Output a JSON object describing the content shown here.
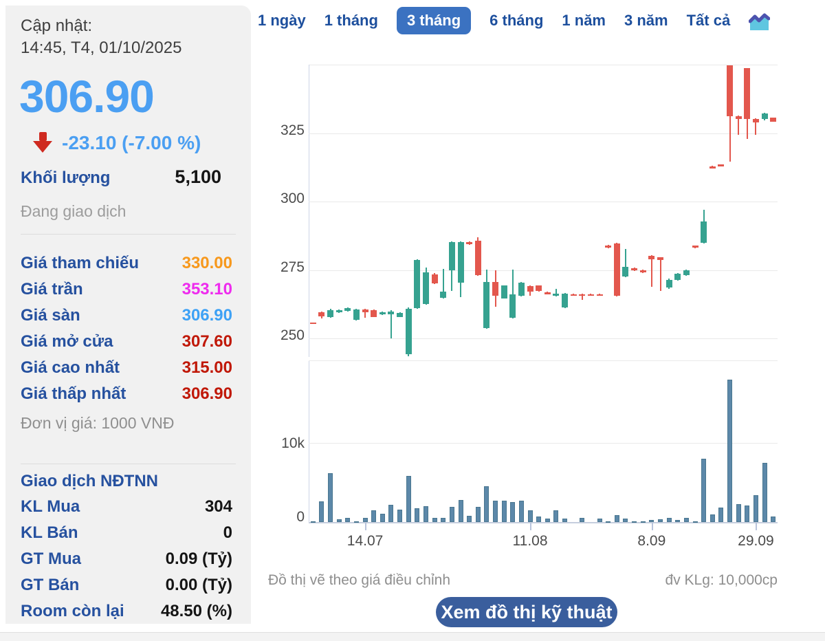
{
  "quote_panel": {
    "updated_label": "Cập nhật:",
    "updated_time": "14:45, T4, 01/10/2025",
    "last_price": "306.90",
    "price_color": "#4b9ff2",
    "change_text": "-23.10 (-7.00 %)",
    "change_arrow_icon": "down-arrow-icon",
    "volume_label": "Khối lượng",
    "volume_value": "5,100",
    "session_status": "Đang giao dịch",
    "price_rows": [
      {
        "label": "Giá tham chiếu",
        "value": "330.00",
        "color": "#f7981c"
      },
      {
        "label": "Giá trần",
        "value": "353.10",
        "color": "#ee2bee"
      },
      {
        "label": "Giá sàn",
        "value": "306.90",
        "color": "#3da1f5"
      },
      {
        "label": "Giá mở cửa",
        "value": "307.60",
        "color": "#c01808"
      },
      {
        "label": "Giá cao nhất",
        "value": "315.00",
        "color": "#c01808"
      },
      {
        "label": "Giá thấp nhất",
        "value": "306.90",
        "color": "#c01808"
      }
    ],
    "price_unit_note": "Đơn vị giá: 1000 VNĐ",
    "foreign_title": "Giao dịch NĐTNN",
    "foreign_rows": [
      {
        "label": "KL Mua",
        "value": "304"
      },
      {
        "label": "KL Bán",
        "value": "0"
      },
      {
        "label": "GT Mua",
        "value": "0.09 (Tỷ)"
      },
      {
        "label": "GT Bán",
        "value": "0.00 (Tỷ)"
      },
      {
        "label": "Room còn lại",
        "value": "48.50 (%)"
      }
    ]
  },
  "tabs": {
    "items": [
      {
        "label": "1 ngày",
        "active": false
      },
      {
        "label": "1 tháng",
        "active": false
      },
      {
        "label": "3 tháng",
        "active": true
      },
      {
        "label": "6 tháng",
        "active": false
      },
      {
        "label": "1 năm",
        "active": false
      },
      {
        "label": "3 năm",
        "active": false
      },
      {
        "label": "Tất cả",
        "active": false
      }
    ],
    "chart_icon": "area-chart-icon",
    "active_bg": "#3b72c1"
  },
  "chart_data": {
    "type": "candlestick+volume",
    "price_axis": {
      "ticks": [
        325,
        300,
        275,
        250
      ],
      "ylim": [
        243,
        350
      ],
      "grid": true
    },
    "volume_axis": {
      "ticks": [
        "10k",
        "0"
      ],
      "gridline_value": 10000
    },
    "x_ticks": [
      {
        "label": "14.07",
        "index": 6
      },
      {
        "label": "11.08",
        "index": 25
      },
      {
        "label": "8.09",
        "index": 39
      },
      {
        "label": "29.09",
        "index": 51
      }
    ],
    "colors": {
      "up": "#36a290",
      "down": "#e3574d",
      "volume": "#5c88a9"
    },
    "candles": [
      [
        255.8,
        255.9,
        255.2,
        255.3,
        50
      ],
      [
        259.5,
        259.8,
        257.3,
        258.0,
        2600
      ],
      [
        257.9,
        260.7,
        257.6,
        260.4,
        6200
      ],
      [
        259.5,
        260.6,
        259.3,
        260.4,
        350
      ],
      [
        260.1,
        261.2,
        259.9,
        261.0,
        500
      ],
      [
        256.8,
        260.8,
        256.5,
        260.5,
        100
      ],
      [
        260.5,
        260.8,
        257.6,
        259.6,
        500
      ],
      [
        260.3,
        260.5,
        257.7,
        257.9,
        1450
      ],
      [
        258.8,
        259.8,
        258.5,
        259.5,
        1050
      ],
      [
        258.9,
        260.2,
        250.0,
        259.8,
        2200
      ],
      [
        257.9,
        259.6,
        257.7,
        259.4,
        1600
      ],
      [
        244.2,
        261.2,
        243.5,
        260.7,
        5850
      ],
      [
        261.0,
        279.0,
        260.8,
        278.7,
        1700
      ],
      [
        262.5,
        275.8,
        262.3,
        274.2,
        2000
      ],
      [
        273.5,
        273.8,
        269.9,
        270.2,
        500
      ],
      [
        264.9,
        275.3,
        264.6,
        267.2,
        500
      ],
      [
        274.9,
        285.6,
        267.3,
        285.3,
        1900
      ],
      [
        270.5,
        285.6,
        265.2,
        285.3,
        2800
      ],
      [
        285.3,
        285.6,
        284.2,
        284.4,
        800
      ],
      [
        285.7,
        286.9,
        272.9,
        273.1,
        1900
      ],
      [
        253.8,
        275.2,
        253.5,
        270.7,
        4500
      ],
      [
        270.7,
        275.0,
        261.5,
        265.5,
        2700
      ],
      [
        264.7,
        269.5,
        264.5,
        269.3,
        2700
      ],
      [
        257.6,
        275.2,
        257.4,
        266.0,
        2500
      ],
      [
        265.5,
        270.7,
        265.3,
        270.5,
        2700
      ],
      [
        269.1,
        269.3,
        265.7,
        267.0,
        1500
      ],
      [
        269.3,
        269.5,
        267.2,
        267.4,
        700
      ],
      [
        266.9,
        267.1,
        266.0,
        266.2,
        400
      ],
      [
        265.6,
        268.0,
        265.4,
        266.4,
        1500
      ],
      [
        261.3,
        266.6,
        261.1,
        266.4,
        400
      ],
      [
        266.2,
        266.4,
        265.8,
        266.0,
        0
      ],
      [
        266.2,
        266.4,
        264.1,
        266.0,
        550
      ],
      [
        266.2,
        266.4,
        265.9,
        266.0,
        0
      ],
      [
        266.2,
        266.4,
        265.9,
        266.0,
        400
      ],
      [
        284.0,
        284.2,
        283.0,
        283.2,
        100
      ],
      [
        284.7,
        284.9,
        265.3,
        265.5,
        900
      ],
      [
        272.6,
        282.7,
        272.4,
        276.1,
        400
      ],
      [
        275.6,
        275.8,
        274.7,
        274.9,
        50
      ],
      [
        274.9,
        275.1,
        273.9,
        274.1,
        50
      ],
      [
        280.2,
        280.4,
        268.8,
        278.9,
        300
      ],
      [
        279.6,
        279.8,
        267.3,
        278.6,
        350
      ],
      [
        268.6,
        271.9,
        268.2,
        271.4,
        500
      ],
      [
        271.4,
        274.0,
        271.2,
        273.6,
        300
      ],
      [
        273.1,
        275.2,
        272.9,
        274.9,
        500
      ],
      [
        283.9,
        284.1,
        283.0,
        283.1,
        100
      ],
      [
        284.9,
        297.0,
        284.7,
        292.7,
        8000
      ],
      [
        312.9,
        313.1,
        312.6,
        312.8,
        1000
      ],
      [
        313.6,
        313.8,
        313.2,
        313.4,
        1800
      ],
      [
        350.0,
        350.0,
        314.6,
        331.4,
        18000
      ],
      [
        331.4,
        331.6,
        324.6,
        330.4,
        2300
      ],
      [
        349.0,
        349.0,
        322.9,
        330.2,
        2100
      ],
      [
        330.4,
        330.6,
        324.6,
        329.1,
        3400
      ],
      [
        330.4,
        332.6,
        329.8,
        332.2,
        7500
      ],
      [
        330.7,
        330.9,
        329.2,
        329.4,
        700
      ]
    ]
  },
  "footer": {
    "note_left": "Đồ thị vẽ theo giá điều chỉnh",
    "note_right": "đv KLg: 10,000cp"
  },
  "action_button": {
    "label": "Xem đồ thị kỹ thuật"
  }
}
